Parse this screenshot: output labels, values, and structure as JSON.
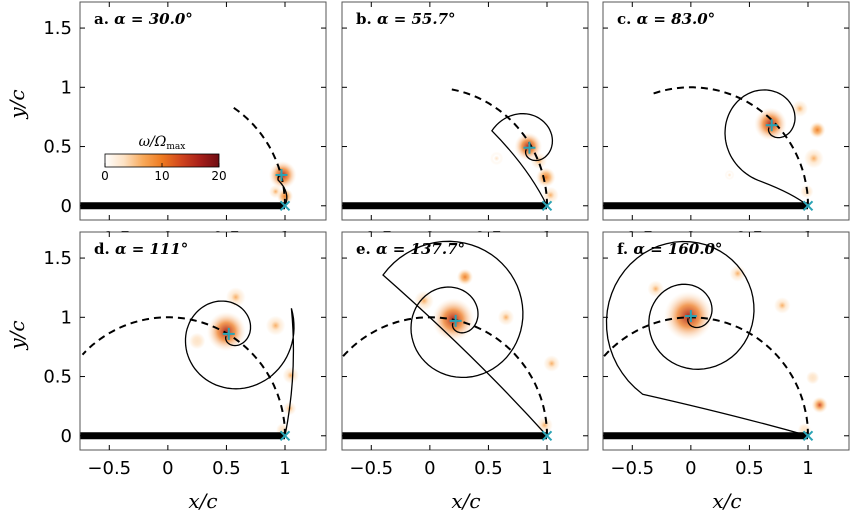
{
  "colors": {
    "plate": "#000000",
    "marker": "#2aa3b5",
    "blob_peak": "#b3251b",
    "blob_mid": "#ee7a20",
    "blob_low": "#fde2c4"
  },
  "chart_data": {
    "type": "heatmap",
    "layout": "2x3 grid of panels with shared axes",
    "xlabel": "x/c",
    "ylabel": "y/c",
    "xlim": [
      -0.75,
      1.35
    ],
    "ylim": [
      -0.12,
      1.72
    ],
    "xticks": [
      -0.5,
      0,
      0.5,
      1
    ],
    "xtick_labels": [
      "−0.5",
      "0",
      "0.5",
      "1"
    ],
    "yticks": [
      0,
      0.5,
      1,
      1.5
    ],
    "ytick_labels": [
      "0",
      "0.5",
      "1",
      "1.5"
    ],
    "colorbar": {
      "label": "ω/Ω",
      "label_subscript": "max",
      "range": [
        0,
        20
      ],
      "ticks": [
        0,
        10,
        20
      ],
      "tick_labels": [
        "0",
        "10",
        "20"
      ],
      "colormap": [
        "#ffffff",
        "#fde2c4",
        "#f8a95a",
        "#ee7a20",
        "#d1461e",
        "#a8201a",
        "#6e0c12"
      ],
      "shown_in_panel": 0
    },
    "plate": {
      "x_start": -0.75,
      "x_end": 1.0,
      "y": 0
    },
    "panels": [
      {
        "label": "a.",
        "alpha_text": "α = 30.0°",
        "alpha_deg": 30.0,
        "vortex_center": [
          0.97,
          0.26
        ],
        "spiral": {
          "turns": 0.1,
          "r0": 0.02,
          "growth": 0.05,
          "theta0_deg": 200
        },
        "blobs": [
          {
            "x": 0.98,
            "y": 0.26,
            "intensity": 16,
            "radius": 0.085
          },
          {
            "x": 1.0,
            "y": 0.08,
            "intensity": 9,
            "radius": 0.05
          },
          {
            "x": 0.92,
            "y": 0.12,
            "intensity": 5,
            "radius": 0.04
          }
        ]
      },
      {
        "label": "b.",
        "alpha_text": "α = 55.7°",
        "alpha_deg": 55.7,
        "vortex_center": [
          0.85,
          0.49
        ],
        "spiral": {
          "turns": 0.85,
          "r0": 0.03,
          "growth": 0.06,
          "theta0_deg": 210
        },
        "blobs": [
          {
            "x": 0.84,
            "y": 0.5,
            "intensity": 17,
            "radius": 0.085
          },
          {
            "x": 0.99,
            "y": 0.24,
            "intensity": 9,
            "radius": 0.06
          },
          {
            "x": 1.03,
            "y": 0.09,
            "intensity": 7,
            "radius": 0.05
          },
          {
            "x": 0.93,
            "y": 0.38,
            "intensity": 5,
            "radius": 0.05
          },
          {
            "x": 0.57,
            "y": 0.4,
            "intensity": 2,
            "radius": 0.04
          }
        ]
      },
      {
        "label": "c.",
        "alpha_text": "α = 83.0°",
        "alpha_deg": 83.0,
        "vortex_center": [
          0.69,
          0.68
        ],
        "spiral": {
          "turns": 1.1,
          "r0": 0.03,
          "growth": 0.065,
          "theta0_deg": 220
        },
        "blobs": [
          {
            "x": 0.68,
            "y": 0.69,
            "intensity": 17,
            "radius": 0.1
          },
          {
            "x": 1.08,
            "y": 0.64,
            "intensity": 9,
            "radius": 0.05
          },
          {
            "x": 1.05,
            "y": 0.4,
            "intensity": 6,
            "radius": 0.06
          },
          {
            "x": 0.93,
            "y": 0.82,
            "intensity": 5,
            "radius": 0.05
          },
          {
            "x": 0.99,
            "y": 0.12,
            "intensity": 4,
            "radius": 0.04
          },
          {
            "x": 0.33,
            "y": 0.26,
            "intensity": 2,
            "radius": 0.03
          }
        ]
      },
      {
        "label": "d.",
        "alpha_text": "α = 111°",
        "alpha_deg": 111.0,
        "vortex_center": [
          0.52,
          0.86
        ],
        "spiral": {
          "turns": 1.45,
          "r0": 0.03,
          "growth": 0.06,
          "theta0_deg": 220
        },
        "blobs": [
          {
            "x": 0.5,
            "y": 0.88,
            "intensity": 17,
            "radius": 0.12
          },
          {
            "x": 0.58,
            "y": 1.17,
            "intensity": 7,
            "radius": 0.06
          },
          {
            "x": 0.92,
            "y": 0.93,
            "intensity": 6,
            "radius": 0.06
          },
          {
            "x": 1.05,
            "y": 0.51,
            "intensity": 8,
            "radius": 0.05
          },
          {
            "x": 1.04,
            "y": 0.23,
            "intensity": 7,
            "radius": 0.04
          },
          {
            "x": 0.98,
            "y": 0.05,
            "intensity": 4,
            "radius": 0.04
          },
          {
            "x": 0.25,
            "y": 0.8,
            "intensity": 3,
            "radius": 0.05
          }
        ]
      },
      {
        "label": "e.",
        "alpha_text": "α = 137.7°",
        "alpha_deg": 137.7,
        "vortex_center": [
          0.22,
          0.97
        ],
        "spiral": {
          "turns": 1.8,
          "r0": 0.03,
          "growth": 0.062,
          "theta0_deg": 220
        },
        "blobs": [
          {
            "x": 0.2,
            "y": 0.98,
            "intensity": 17,
            "radius": 0.13
          },
          {
            "x": 0.3,
            "y": 1.34,
            "intensity": 9,
            "radius": 0.05
          },
          {
            "x": -0.05,
            "y": 1.14,
            "intensity": 8,
            "radius": 0.06
          },
          {
            "x": 0.65,
            "y": 1.0,
            "intensity": 7,
            "radius": 0.05
          },
          {
            "x": 1.04,
            "y": 0.61,
            "intensity": 7,
            "radius": 0.05
          },
          {
            "x": 0.98,
            "y": 0.09,
            "intensity": 6,
            "radius": 0.05
          }
        ]
      },
      {
        "label": "f.",
        "alpha_text": "α = 160.0°",
        "alpha_deg": 160.0,
        "vortex_center": [
          0.0,
          1.01
        ],
        "spiral": {
          "turns": 2.05,
          "r0": 0.03,
          "growth": 0.058,
          "theta0_deg": 220
        },
        "blobs": [
          {
            "x": -0.02,
            "y": 1.01,
            "intensity": 17,
            "radius": 0.15
          },
          {
            "x": 0.4,
            "y": 1.37,
            "intensity": 8,
            "radius": 0.05
          },
          {
            "x": -0.3,
            "y": 1.24,
            "intensity": 6,
            "radius": 0.05
          },
          {
            "x": 0.78,
            "y": 1.1,
            "intensity": 5,
            "radius": 0.05
          },
          {
            "x": 1.1,
            "y": 0.26,
            "intensity": 12,
            "radius": 0.05
          },
          {
            "x": 1.04,
            "y": 0.49,
            "intensity": 3,
            "radius": 0.04
          },
          {
            "x": 0.97,
            "y": 0.05,
            "intensity": 4,
            "radius": 0.04
          }
        ]
      }
    ]
  }
}
